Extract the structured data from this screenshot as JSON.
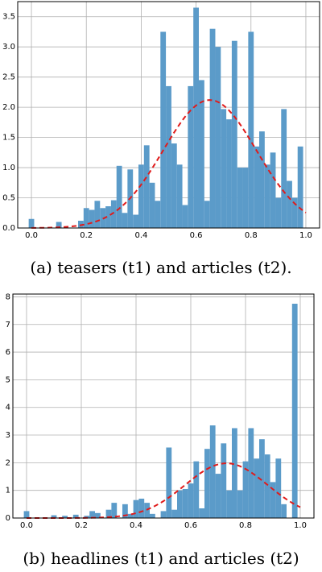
{
  "chart_data": [
    {
      "type": "bar",
      "caption": "(a) teasers (t1) and articles (t2).",
      "xlim": [
        -0.05,
        1.05
      ],
      "ylim": [
        0,
        3.75
      ],
      "x_ticks": [
        "0.0",
        "0.2",
        "0.4",
        "0.6",
        "0.8",
        "1.0"
      ],
      "x_tick_values": [
        0.0,
        0.2,
        0.4,
        0.6,
        0.8,
        1.0
      ],
      "y_ticks": [
        "0.0",
        "0.5",
        "1.0",
        "1.5",
        "2.0",
        "2.5",
        "3.0",
        "3.5"
      ],
      "y_tick_values": [
        0.0,
        0.5,
        1.0,
        1.5,
        2.0,
        2.5,
        3.0,
        3.5
      ],
      "grid": true,
      "bar_color": "#5b9bc9",
      "curve_color": "#e01b1b",
      "bin_width": 0.02,
      "bins": [
        {
          "x": 0.0,
          "y": 0.15
        },
        {
          "x": 0.1,
          "y": 0.1
        },
        {
          "x": 0.18,
          "y": 0.12
        },
        {
          "x": 0.2,
          "y": 0.33
        },
        {
          "x": 0.22,
          "y": 0.3
        },
        {
          "x": 0.24,
          "y": 0.45
        },
        {
          "x": 0.26,
          "y": 0.33
        },
        {
          "x": 0.28,
          "y": 0.36
        },
        {
          "x": 0.3,
          "y": 0.46
        },
        {
          "x": 0.32,
          "y": 1.03
        },
        {
          "x": 0.34,
          "y": 0.25
        },
        {
          "x": 0.36,
          "y": 0.97
        },
        {
          "x": 0.38,
          "y": 0.22
        },
        {
          "x": 0.4,
          "y": 1.05
        },
        {
          "x": 0.42,
          "y": 1.37
        },
        {
          "x": 0.44,
          "y": 0.75
        },
        {
          "x": 0.46,
          "y": 0.45
        },
        {
          "x": 0.48,
          "y": 3.25
        },
        {
          "x": 0.5,
          "y": 2.35
        },
        {
          "x": 0.52,
          "y": 1.4
        },
        {
          "x": 0.54,
          "y": 1.05
        },
        {
          "x": 0.56,
          "y": 0.38
        },
        {
          "x": 0.58,
          "y": 2.35
        },
        {
          "x": 0.6,
          "y": 3.65
        },
        {
          "x": 0.62,
          "y": 2.45
        },
        {
          "x": 0.64,
          "y": 0.45
        },
        {
          "x": 0.66,
          "y": 3.3
        },
        {
          "x": 0.68,
          "y": 3.0
        },
        {
          "x": 0.7,
          "y": 1.97
        },
        {
          "x": 0.72,
          "y": 1.8
        },
        {
          "x": 0.74,
          "y": 3.1
        },
        {
          "x": 0.76,
          "y": 1.0
        },
        {
          "x": 0.78,
          "y": 1.0
        },
        {
          "x": 0.8,
          "y": 3.25
        },
        {
          "x": 0.82,
          "y": 1.35
        },
        {
          "x": 0.84,
          "y": 1.6
        },
        {
          "x": 0.86,
          "y": 1.05
        },
        {
          "x": 0.88,
          "y": 1.25
        },
        {
          "x": 0.9,
          "y": 0.5
        },
        {
          "x": 0.92,
          "y": 1.97
        },
        {
          "x": 0.94,
          "y": 0.78
        },
        {
          "x": 0.96,
          "y": 0.5
        },
        {
          "x": 0.98,
          "y": 1.35
        }
      ],
      "fit_curve": {
        "style": "dashed",
        "mean": 0.65,
        "sd": 0.17,
        "peak": 2.12
      }
    },
    {
      "type": "bar",
      "caption": "(b) headlines (t1) and articles (t2)",
      "xlim": [
        -0.05,
        1.05
      ],
      "ylim": [
        0,
        8.1
      ],
      "x_ticks": [
        "0.0",
        "0.2",
        "0.4",
        "0.6",
        "0.8",
        "1.0"
      ],
      "x_tick_values": [
        0.0,
        0.2,
        0.4,
        0.6,
        0.8,
        1.0
      ],
      "y_ticks": [
        "0",
        "1",
        "2",
        "3",
        "4",
        "5",
        "6",
        "7",
        "8"
      ],
      "y_tick_values": [
        0,
        1,
        2,
        3,
        4,
        5,
        6,
        7,
        8
      ],
      "grid": true,
      "bar_color": "#5b9bc9",
      "curve_color": "#e01b1b",
      "bin_width": 0.02,
      "bins": [
        {
          "x": 0.0,
          "y": 0.25
        },
        {
          "x": 0.1,
          "y": 0.1
        },
        {
          "x": 0.14,
          "y": 0.08
        },
        {
          "x": 0.18,
          "y": 0.12
        },
        {
          "x": 0.22,
          "y": 0.08
        },
        {
          "x": 0.24,
          "y": 0.25
        },
        {
          "x": 0.26,
          "y": 0.18
        },
        {
          "x": 0.3,
          "y": 0.3
        },
        {
          "x": 0.32,
          "y": 0.55
        },
        {
          "x": 0.36,
          "y": 0.5
        },
        {
          "x": 0.38,
          "y": 0.15
        },
        {
          "x": 0.4,
          "y": 0.65
        },
        {
          "x": 0.42,
          "y": 0.7
        },
        {
          "x": 0.44,
          "y": 0.55
        },
        {
          "x": 0.46,
          "y": 0.15
        },
        {
          "x": 0.5,
          "y": 0.25
        },
        {
          "x": 0.52,
          "y": 2.55
        },
        {
          "x": 0.54,
          "y": 0.3
        },
        {
          "x": 0.56,
          "y": 1.0
        },
        {
          "x": 0.58,
          "y": 1.05
        },
        {
          "x": 0.6,
          "y": 1.25
        },
        {
          "x": 0.62,
          "y": 2.05
        },
        {
          "x": 0.64,
          "y": 0.35
        },
        {
          "x": 0.66,
          "y": 2.5
        },
        {
          "x": 0.68,
          "y": 3.35
        },
        {
          "x": 0.7,
          "y": 1.6
        },
        {
          "x": 0.72,
          "y": 2.7
        },
        {
          "x": 0.74,
          "y": 1.0
        },
        {
          "x": 0.76,
          "y": 3.25
        },
        {
          "x": 0.78,
          "y": 1.0
        },
        {
          "x": 0.8,
          "y": 2.05
        },
        {
          "x": 0.82,
          "y": 3.25
        },
        {
          "x": 0.84,
          "y": 2.15
        },
        {
          "x": 0.86,
          "y": 2.85
        },
        {
          "x": 0.88,
          "y": 2.3
        },
        {
          "x": 0.9,
          "y": 1.3
        },
        {
          "x": 0.92,
          "y": 2.15
        },
        {
          "x": 0.94,
          "y": 0.5
        },
        {
          "x": 0.98,
          "y": 7.75
        }
      ],
      "fit_curve": {
        "style": "dashed",
        "mean": 0.73,
        "sd": 0.15,
        "peak": 1.98
      }
    }
  ]
}
